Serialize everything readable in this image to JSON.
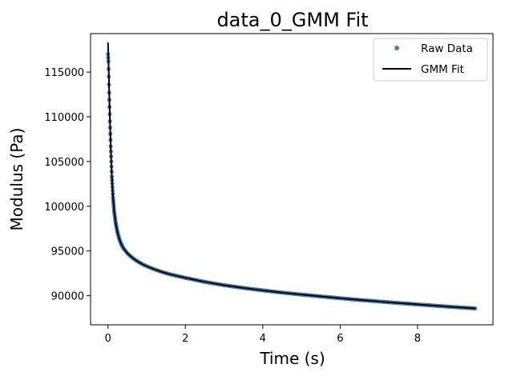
{
  "chart_data": {
    "type": "scatter",
    "title": "data_0_GMM Fit",
    "xlabel": "Time (s)",
    "ylabel": "Modulus (Pa)",
    "xlim": [
      -0.45,
      9.95
    ],
    "ylim": [
      86750,
      119300
    ],
    "xticks": [
      0,
      2,
      4,
      6,
      8
    ],
    "xtick_labels": [
      "0",
      "2",
      "4",
      "6",
      "8"
    ],
    "yticks": [
      90000,
      95000,
      100000,
      105000,
      110000,
      115000
    ],
    "ytick_labels": [
      "90000",
      "95000",
      "100000",
      "105000",
      "110000",
      "115000"
    ],
    "grid": false,
    "legend": {
      "position": "top-right",
      "entries": [
        "Raw Data",
        "GMM Fit"
      ]
    },
    "series": [
      {
        "name": "Raw Data",
        "style": "markers",
        "color": "#4682b4",
        "x": [
          0.0,
          0.01,
          0.02,
          0.03,
          0.05,
          0.07,
          0.1,
          0.13,
          0.16,
          0.2,
          0.25,
          0.3,
          0.35,
          0.4,
          0.5,
          0.6,
          0.7,
          0.8,
          0.9,
          1.0,
          1.2,
          1.4,
          1.6,
          1.8,
          2.0,
          2.5,
          3.0,
          3.5,
          4.0,
          4.5,
          5.0,
          5.5,
          6.0,
          6.5,
          7.0,
          7.5,
          8.0,
          8.5,
          9.0,
          9.5
        ],
        "y": [
          117000,
          116200,
          114500,
          112700,
          109500,
          106700,
          103300,
          101000,
          99400,
          98100,
          97000,
          96250,
          95700,
          95300,
          94750,
          94350,
          94020,
          93750,
          93500,
          93300,
          92950,
          92650,
          92400,
          92200,
          92000,
          91550,
          91180,
          90870,
          90600,
          90350,
          90130,
          89920,
          89720,
          89530,
          89360,
          89190,
          89030,
          88870,
          88720,
          88580
        ]
      },
      {
        "name": "GMM Fit",
        "style": "line",
        "color": "#000000",
        "x": [
          0.0,
          0.01,
          0.02,
          0.03,
          0.05,
          0.07,
          0.1,
          0.13,
          0.16,
          0.2,
          0.25,
          0.3,
          0.35,
          0.4,
          0.5,
          0.6,
          0.7,
          0.8,
          0.9,
          1.0,
          1.2,
          1.4,
          1.6,
          1.8,
          2.0,
          2.5,
          3.0,
          3.5,
          4.0,
          4.5,
          5.0,
          5.5,
          6.0,
          6.5,
          7.0,
          7.5,
          8.0,
          8.5,
          9.0,
          9.5
        ],
        "y": [
          118300,
          116800,
          115000,
          113000,
          109700,
          106800,
          103300,
          101000,
          99400,
          98100,
          97000,
          96250,
          95700,
          95300,
          94750,
          94350,
          94020,
          93750,
          93500,
          93300,
          92950,
          92650,
          92400,
          92200,
          92000,
          91550,
          91180,
          90870,
          90600,
          90350,
          90130,
          89920,
          89720,
          89530,
          89360,
          89190,
          89030,
          88870,
          88720,
          88580
        ]
      }
    ]
  }
}
